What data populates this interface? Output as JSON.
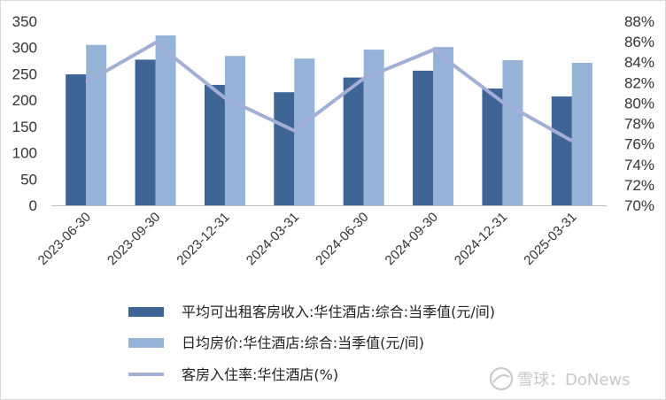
{
  "chart_data": {
    "type": "bar",
    "categories": [
      "2023-06-30",
      "2023-09-30",
      "2023-12-31",
      "2024-03-31",
      "2024-06-30",
      "2024-09-30",
      "2024-12-31",
      "2025-03-31"
    ],
    "series": [
      {
        "name": "平均可出租客房收入:华住酒店:综合:当季值(元/间)",
        "kind": "bar",
        "axis": "left",
        "color": "#3e6596",
        "values": [
          249,
          277,
          229,
          215,
          243,
          256,
          222,
          207
        ]
      },
      {
        "name": "日均房价:华住酒店:综合:当季值(元/间)",
        "kind": "bar",
        "axis": "left",
        "color": "#95b3d7",
        "values": [
          305,
          323,
          284,
          279,
          296,
          301,
          276,
          271
        ]
      },
      {
        "name": "客房入住率:华住酒店(%)",
        "kind": "line",
        "axis": "right",
        "color": "#a3afd6",
        "values": [
          82.0,
          85.9,
          80.5,
          77.3,
          82.4,
          85.2,
          80.1,
          76.3
        ]
      }
    ],
    "y_left": {
      "min": 0,
      "max": 350,
      "ticks": [
        "0",
        "50",
        "100",
        "150",
        "200",
        "250",
        "300",
        "350"
      ]
    },
    "y_right": {
      "min": 70,
      "max": 88,
      "ticks": [
        "70%",
        "72%",
        "74%",
        "76%",
        "78%",
        "80%",
        "82%",
        "84%",
        "86%",
        "88%"
      ]
    },
    "grid": false,
    "legend_position": "bottom"
  },
  "watermark": {
    "icon": "snowball-icon",
    "text": "雪球：DoNews"
  }
}
